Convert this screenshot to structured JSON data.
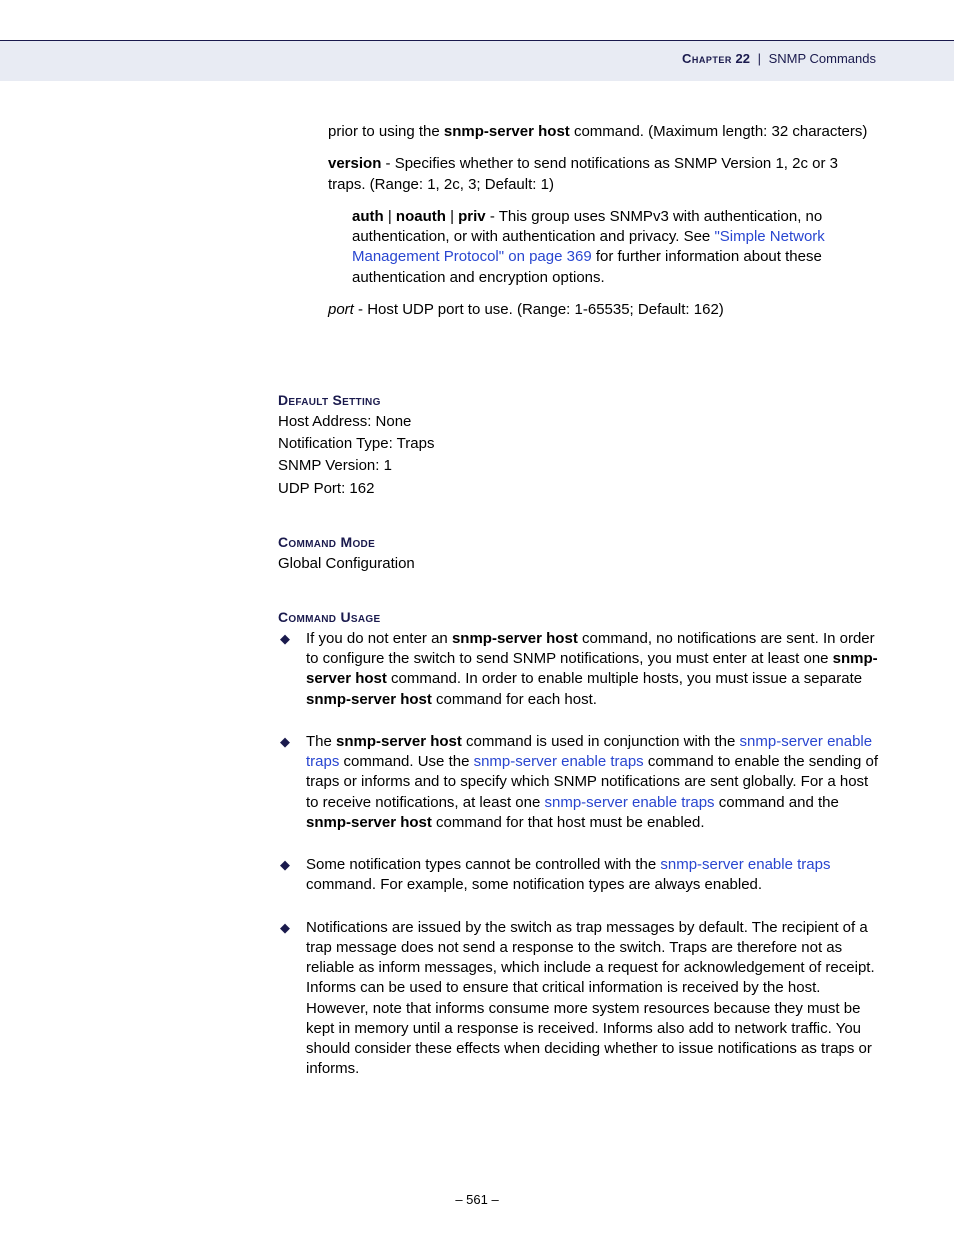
{
  "header": {
    "chapter_label": "Chapter",
    "chapter_num": "22",
    "separator": "|",
    "title": "SNMP Commands"
  },
  "body": {
    "p1_a": "prior to using the ",
    "p1_b": "snmp-server host",
    "p1_c": " command. (Maximum length: 32 characters)",
    "p2_a": "version",
    "p2_b": " - Specifies whether to send notifications as SNMP Version 1, 2c or 3 traps. (Range: 1, 2c, 3; Default: 1)",
    "p3_a": "auth",
    "p3_sep1": " | ",
    "p3_b": "noauth",
    "p3_sep2": " | ",
    "p3_c": "priv",
    "p3_d": " - This group uses SNMPv3 with authentication, no authentication, or with authentication and privacy. See ",
    "p3_link": "\"Simple Network Management Protocol\" on page 369",
    "p3_e": " for further information about these authentication and encryption options.",
    "p4_a": "port",
    "p4_b": " - Host UDP port to use. (Range: 1-65535; Default: 162)"
  },
  "default_setting": {
    "head": "Default Setting",
    "l1": "Host Address: None",
    "l2": "Notification Type: Traps",
    "l3": "SNMP Version: 1",
    "l4": "UDP Port: 162"
  },
  "command_mode": {
    "head": "Command Mode",
    "l1": "Global Configuration"
  },
  "command_usage": {
    "head": "Command Usage",
    "b1_a": "If you do not enter an ",
    "b1_b": "snmp-server host",
    "b1_c": " command, no notifications are sent. In order to configure the switch to send SNMP notifications, you must enter at least one ",
    "b1_d": "snmp-server host",
    "b1_e": " command. In order to enable multiple hosts, you must issue a separate ",
    "b1_f": "snmp-server host",
    "b1_g": " command for each host.",
    "b2_a": "The ",
    "b2_b": "snmp-server host",
    "b2_c": " command is used in conjunction with the ",
    "b2_link1": "snmp-server enable traps",
    "b2_d": " command. Use the ",
    "b2_link2": "snmp-server enable traps",
    "b2_e": " command to enable the sending of traps or informs and to specify which SNMP notifications are sent globally. For a host to receive notifications, at least one ",
    "b2_link3": "snmp-server enable traps",
    "b2_f": " command and the ",
    "b2_g": "snmp-server host",
    "b2_h": " command for that host must be enabled.",
    "b3_a": "Some notification types cannot be controlled with the ",
    "b3_link": "snmp-server enable traps",
    "b3_b": " command. For example, some notification types are always enabled.",
    "b4": "Notifications are issued by the switch as trap messages by default. The recipient of a trap message does not send a response to the switch. Traps are therefore not as reliable as inform messages, which include a request for acknowledgement of receipt. Informs can be used to ensure that critical information is received by the host. However, note that informs consume more system resources because they must be kept in memory until a response is received. Informs also add to network traffic. You should consider these effects when deciding whether to issue notifications as traps or informs."
  },
  "footer": {
    "page": "–  561  –"
  },
  "colors": {
    "band_bg": "#e8ebf3",
    "rule": "#1a1a4d",
    "heading": "#1a1a4d",
    "link": "#2946d0"
  }
}
